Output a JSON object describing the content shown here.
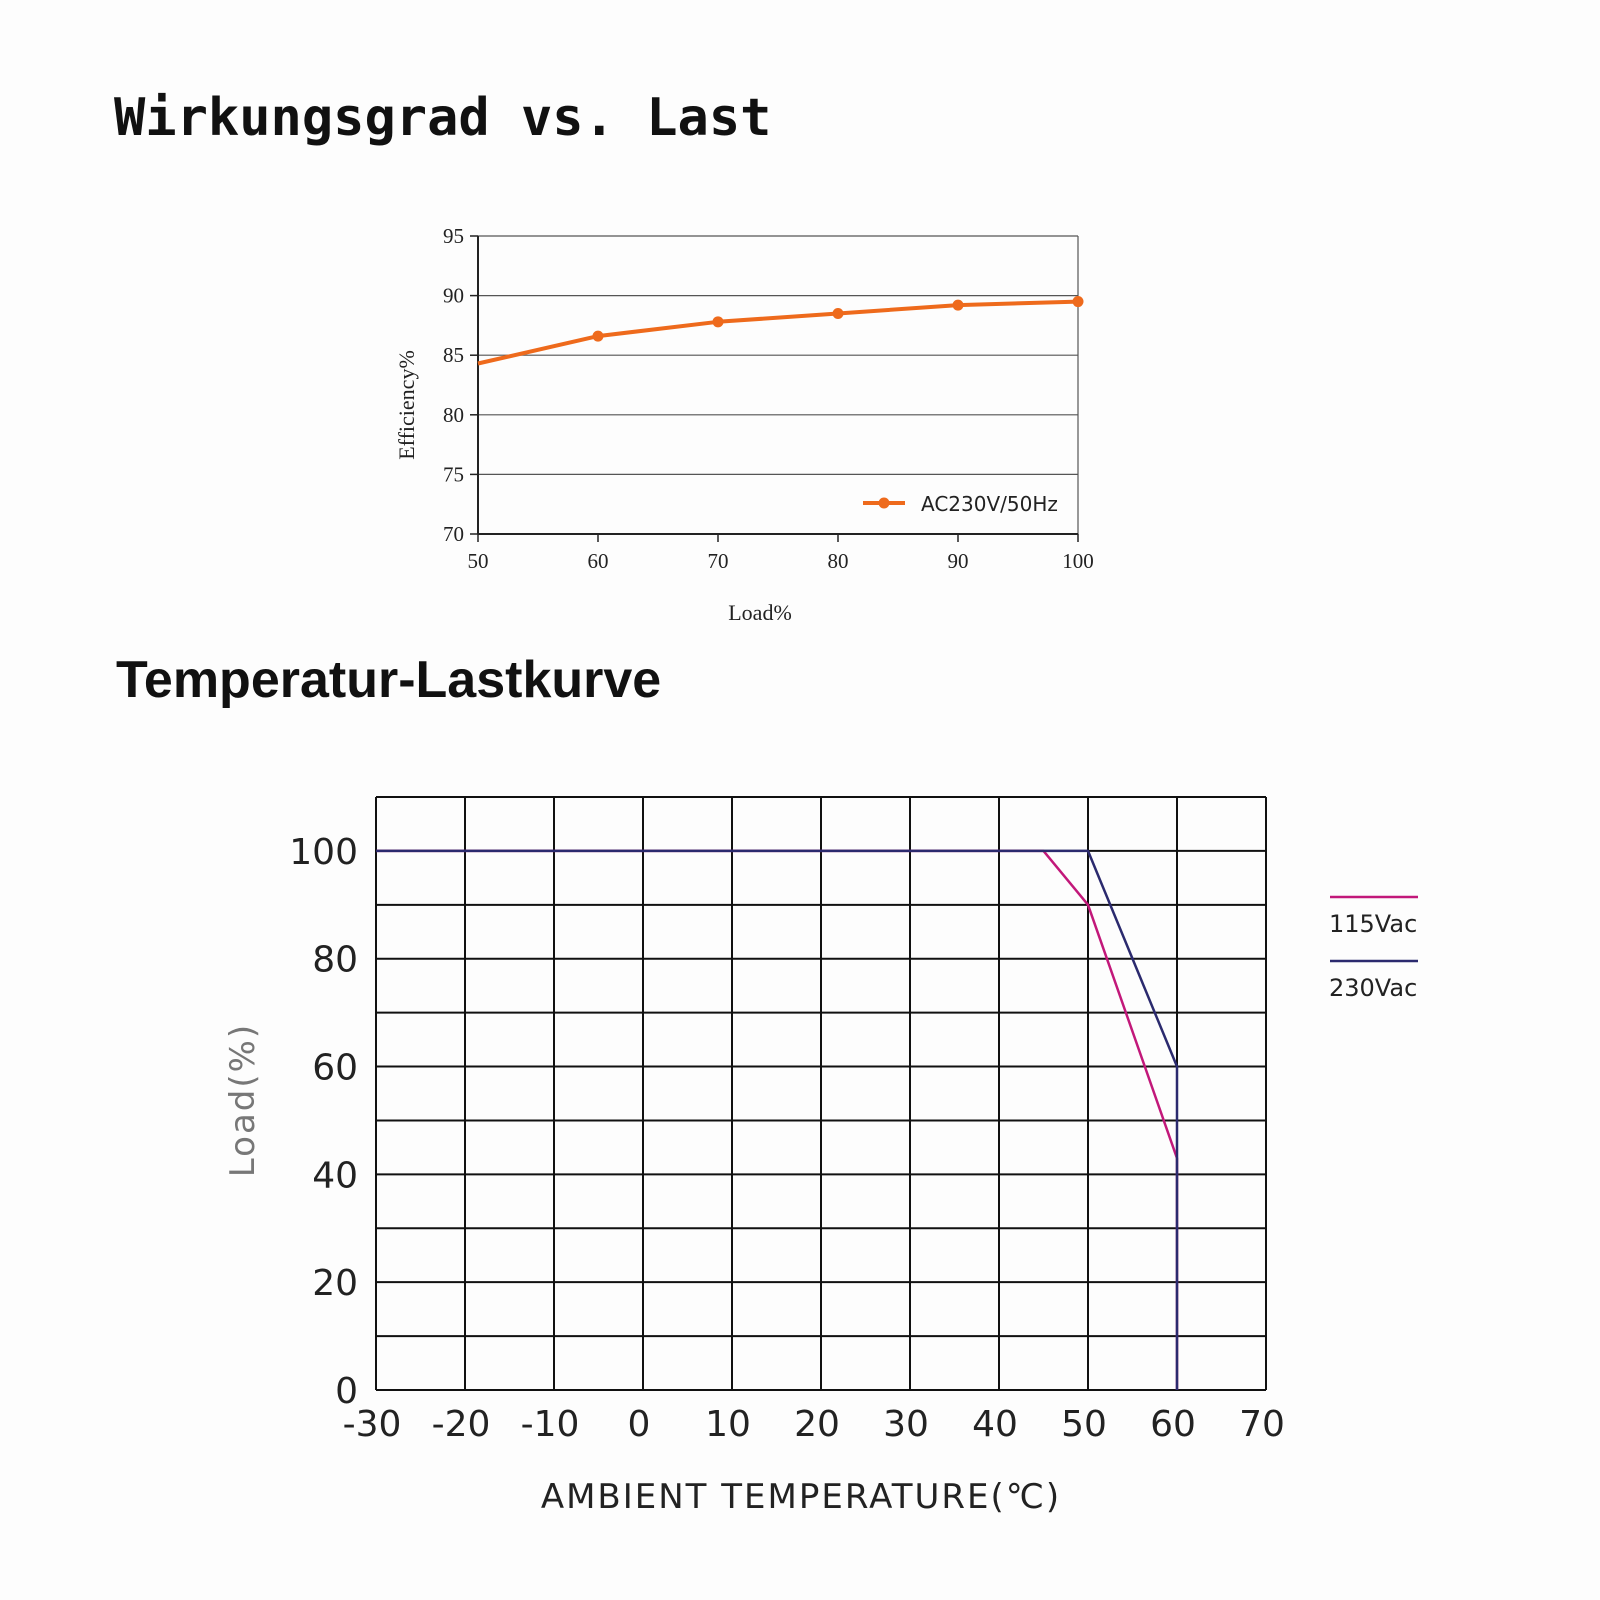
{
  "titles": {
    "efficiency": "Wirkungsgrad vs. Last",
    "temperature": "Temperatur-Lastkurve"
  },
  "chart_data": [
    {
      "type": "line",
      "xlabel": "Load%",
      "ylabel": "Efficiency%",
      "xlim": [
        50,
        100
      ],
      "ylim": [
        70,
        95
      ],
      "x_ticks": [
        "50",
        "60",
        "70",
        "80",
        "90",
        "100"
      ],
      "y_ticks": [
        "95",
        "90",
        "85",
        "80",
        "75",
        "70"
      ],
      "grid": "horizontal",
      "legend_position": "bottom-right",
      "colors": {
        "series": "#ee6a1c",
        "axis": "#222222",
        "grid": "#555555"
      },
      "series": [
        {
          "name": "AC230V/50Hz",
          "x": [
            50,
            60,
            70,
            80,
            90,
            100
          ],
          "y": [
            84.3,
            86.6,
            87.8,
            88.5,
            89.2,
            89.5
          ],
          "markers_at": [
            60,
            70,
            80,
            90,
            100
          ]
        }
      ]
    },
    {
      "type": "line",
      "xlabel": "AMBIENT TEMPERATURE(℃)",
      "ylabel": "Load(%)",
      "xlim": [
        -30,
        70
      ],
      "ylim": [
        0,
        110
      ],
      "x_ticks": [
        "-30",
        "-20",
        "-10",
        "0",
        "10",
        "20",
        "30",
        "40",
        "50",
        "60",
        "70"
      ],
      "y_ticks": [
        "100",
        "80",
        "60",
        "40",
        "20",
        "0"
      ],
      "grid": "both",
      "legend_position": "right",
      "colors": {
        "grid": "#111111"
      },
      "series": [
        {
          "name": "115Vac",
          "color": "#c2187a",
          "x": [
            -30,
            45,
            50,
            60,
            60
          ],
          "y": [
            100,
            100,
            90,
            43,
            0
          ]
        },
        {
          "name": "230Vac",
          "color": "#2b2a6e",
          "x": [
            -30,
            50,
            60,
            60
          ],
          "y": [
            100,
            100,
            60,
            0
          ]
        }
      ]
    }
  ]
}
